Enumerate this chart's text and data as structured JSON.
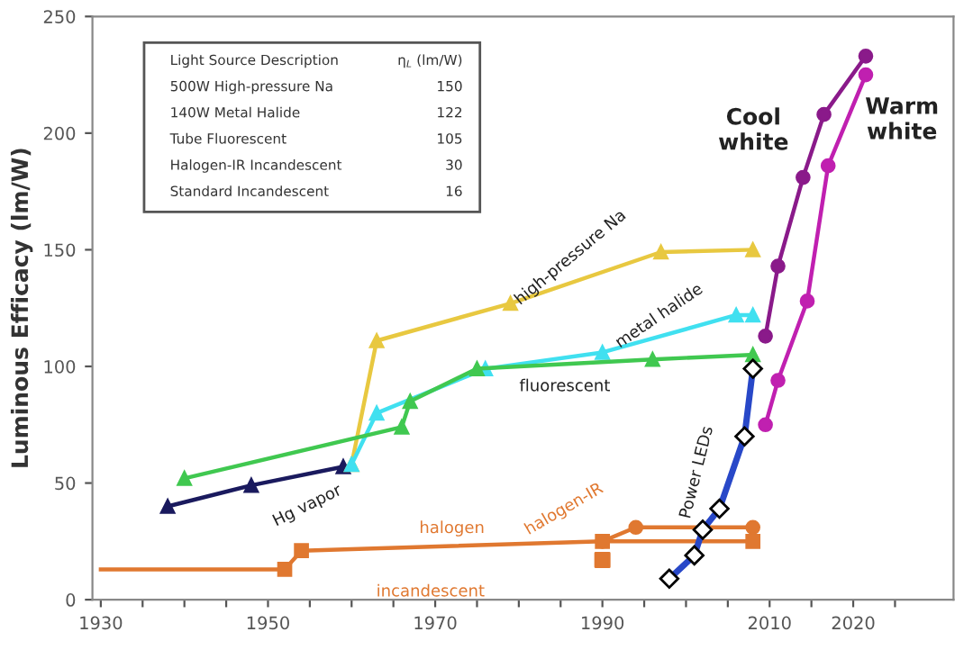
{
  "chart_data": {
    "type": "line",
    "ylabel": "Luminous Efficacy (lm/W)",
    "xlim": [
      1929,
      2032
    ],
    "xticks": [
      1930,
      {
        "value": 1935,
        "label": null
      },
      {
        "value": 1940,
        "label": null
      },
      {
        "value": 1945,
        "label": null
      },
      1950,
      {
        "value": 1955,
        "label": null
      },
      {
        "value": 1960,
        "label": null
      },
      {
        "value": 1965,
        "label": null
      },
      1970,
      {
        "value": 1975,
        "label": null
      },
      {
        "value": 1980,
        "label": null
      },
      {
        "value": 1985,
        "label": null
      },
      1990,
      {
        "value": 1995,
        "label": null
      },
      {
        "value": 2000,
        "label": null
      },
      {
        "value": 2005,
        "label": null
      },
      2010,
      {
        "value": 2015,
        "label": null
      },
      2020,
      {
        "value": 2025,
        "label": null
      }
    ],
    "ylim": [
      0,
      250
    ],
    "yticks": [
      0,
      50,
      100,
      150,
      200,
      250
    ],
    "grid": false,
    "series": [
      {
        "name": "Hg vapor",
        "color": "#1a1a5e",
        "marker": "triangle",
        "x": [
          1938,
          1948,
          1959
        ],
        "values": [
          40,
          49,
          57
        ]
      },
      {
        "name": "high-pressure Na",
        "color": "#e8c840",
        "marker": "triangle",
        "x": [
          1960,
          1963,
          1979,
          1997,
          2008
        ],
        "values": [
          58,
          111,
          127,
          149,
          150
        ]
      },
      {
        "name": "metal halide",
        "color": "#40e0f0",
        "marker": "triangle",
        "x": [
          1960,
          1963,
          1976,
          1990,
          2006,
          2008
        ],
        "values": [
          58,
          80,
          99,
          106,
          122,
          122
        ]
      },
      {
        "name": "fluorescent",
        "color": "#40c850",
        "marker": "triangle",
        "x": [
          1940,
          1966,
          1967,
          1975,
          1996,
          2008
        ],
        "values": [
          52,
          74,
          85,
          99,
          103,
          105
        ]
      },
      {
        "name": "incandescent",
        "color": "#e07830",
        "x": [
          1930,
          1952
        ],
        "values": [
          13,
          13
        ]
      },
      {
        "name": null,
        "type": "scatter",
        "color": "#e07830",
        "marker": "square",
        "x": [
          1990
        ],
        "values": [
          17
        ]
      },
      {
        "name": "halogen",
        "color": "#e07830",
        "marker": "square",
        "x": [
          1952,
          1954,
          1990,
          2008
        ],
        "values": [
          13,
          21,
          25,
          25
        ]
      },
      {
        "name": "halogen-IR",
        "color": "#e07830",
        "marker": "circle",
        "x": [
          1990,
          1994,
          2008
        ],
        "values": [
          25,
          31,
          31
        ]
      },
      {
        "name": "Power LEDs",
        "color": "#2848c8",
        "marker": "diamond",
        "x": [
          1998,
          2001,
          2002,
          2004,
          2007,
          2008
        ],
        "values": [
          9,
          19,
          30,
          39,
          70,
          99
        ]
      },
      {
        "name": "Cool white",
        "color": "#8a1a8a",
        "marker": "circle",
        "x": [
          2009.5,
          2011,
          2014,
          2016.5,
          2021.5
        ],
        "values": [
          113,
          143,
          181,
          208,
          233
        ]
      },
      {
        "name": "Warm white",
        "color": "#c020b0",
        "marker": "circle",
        "x": [
          2009.5,
          2011,
          2014.5,
          2017,
          2021.5
        ],
        "values": [
          75,
          94,
          128,
          186,
          225
        ]
      }
    ],
    "annotations": [
      "Light Source Description",
      "η$_{L}$ (lm/W)",
      "500W High-pressure Na",
      "150",
      "140W Metal Halide",
      "122",
      "Tube Fluorescent",
      "105",
      "Halogen-IR Incandescent",
      "30",
      "Standard Incandescent",
      "16"
    ]
  }
}
